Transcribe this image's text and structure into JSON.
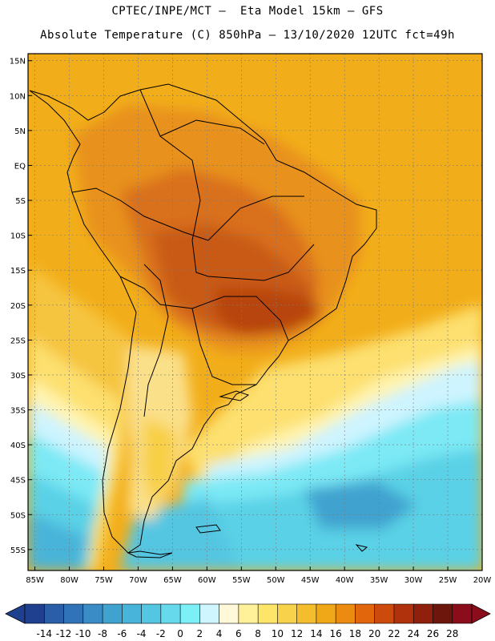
{
  "header": {
    "line1": "CPTEC/INPE/MCT –  Eta Model 15km – GFS",
    "line2": "Absolute Temperature (C) 850hPa – 13/10/2020 12UTC fct=49h"
  },
  "map": {
    "lat_labels": [
      "15N",
      "10N",
      "5N",
      "EQ",
      "5S",
      "10S",
      "15S",
      "20S",
      "25S",
      "30S",
      "35S",
      "40S",
      "45S",
      "50S",
      "55S"
    ],
    "lon_labels": [
      "85W",
      "80W",
      "75W",
      "70W",
      "65W",
      "60W",
      "55W",
      "50W",
      "45W",
      "40W",
      "35W",
      "30W",
      "25W",
      "20W"
    ],
    "extent": {
      "lon_min": -86,
      "lon_max": -20,
      "lat_min": -58,
      "lat_max": 16
    }
  },
  "colorbar": {
    "labels": [
      "-14",
      "-12",
      "-10",
      "-8",
      "-6",
      "-4",
      "-2",
      "0",
      "2",
      "4",
      "6",
      "8",
      "10",
      "12",
      "14",
      "16",
      "18",
      "20",
      "22",
      "24",
      "26",
      "28"
    ],
    "colors": [
      "#1f3f8f",
      "#2a5ea8",
      "#3173b8",
      "#3a8cc6",
      "#3fa2cf",
      "#48b4d9",
      "#54c6e2",
      "#66d9ec",
      "#7df0f7",
      "#cff5ff",
      "#fff9d9",
      "#fff19a",
      "#fde56a",
      "#f8d24a",
      "#f3bd2c",
      "#f0a818",
      "#eb8c10",
      "#e1660c",
      "#cc4a0c",
      "#b0320c",
      "#8e200c",
      "#6d160c",
      "#8b0d1b"
    ],
    "under_color": "#1f3f8f",
    "over_color": "#8b0d1b"
  },
  "colors": {
    "ocean_warm": "#f2ae1a",
    "land_hot": "#d2600f"
  }
}
